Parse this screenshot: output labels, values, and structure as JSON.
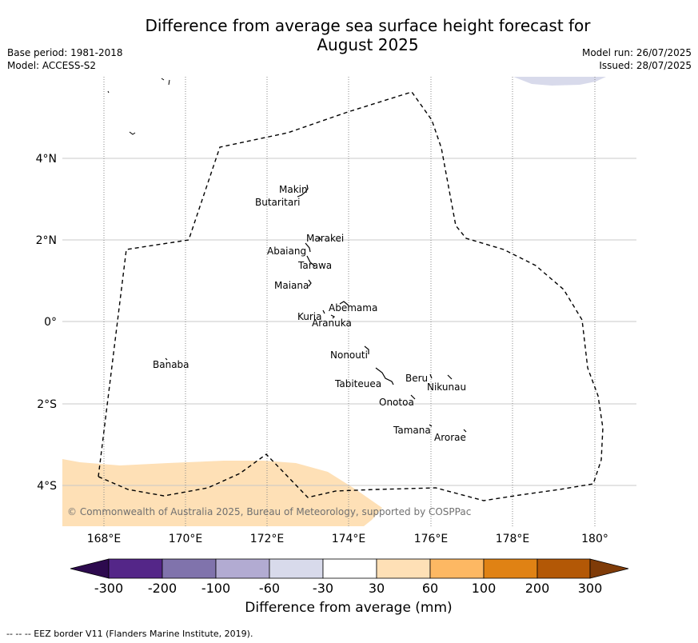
{
  "title_line1": "Difference from average sea surface height forecast for",
  "title_line2": "August 2025",
  "meta": {
    "base_period": "Base period: 1981-2018",
    "model": "Model: ACCESS-S2",
    "model_run": "Model run: 26/07/2025",
    "issued": "Issued: 28/07/2025"
  },
  "axes": {
    "lon_ticks": [
      "168°E",
      "170°E",
      "172°E",
      "174°E",
      "176°E",
      "178°E",
      "180°"
    ],
    "lat_ticks": [
      "4°N",
      "2°N",
      "0°",
      "2°S",
      "4°S"
    ]
  },
  "islands": [
    {
      "label": "Makin"
    },
    {
      "label": "Butaritari"
    },
    {
      "label": "Marakei"
    },
    {
      "label": "Abaiang"
    },
    {
      "label": "Tarawa"
    },
    {
      "label": "Maiana"
    },
    {
      "label": "Abemama"
    },
    {
      "label": "Kuria"
    },
    {
      "label": "Aranuka"
    },
    {
      "label": "Nonouti"
    },
    {
      "label": "Banaba"
    },
    {
      "label": "Tabiteuea"
    },
    {
      "label": "Beru"
    },
    {
      "label": "Nikunau"
    },
    {
      "label": "Onotoa"
    },
    {
      "label": "Tamana"
    },
    {
      "label": "Arorae"
    }
  ],
  "copyright": "© Commonwealth of Australia 2025, Bureau of Meteorology, supported by COSPPac",
  "colorbar": {
    "title": "Difference from average (mm)",
    "ticks": [
      "-300",
      "-200",
      "-100",
      "-60",
      "-30",
      "30",
      "60",
      "100",
      "200",
      "300"
    ],
    "colors": {
      "under": "#2d0a4e",
      "c1": "#542688",
      "c2": "#8073ac",
      "c3": "#b2abd2",
      "c4": "#d8daeb",
      "c5": "#ffffff",
      "c6": "#fee0b6",
      "c7": "#fdb863",
      "c8": "#e08214",
      "c9": "#b35806",
      "over": "#7f3b08"
    }
  },
  "footnote": "--  --  -- EEZ border V11 (Flanders Marine Institute, 2019)."
}
